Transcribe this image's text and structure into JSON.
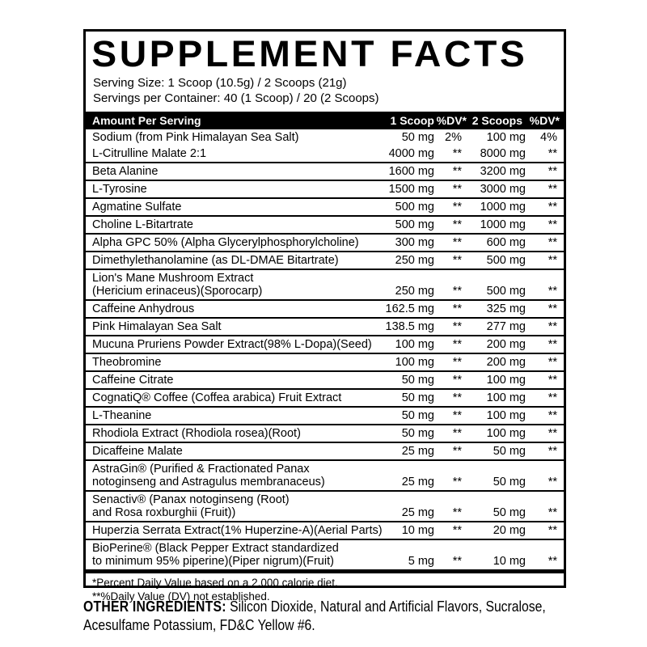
{
  "title": "SUPPLEMENT FACTS",
  "serving": {
    "size": "Serving Size: 1 Scoop (10.5g) / 2 Scoops (21g)",
    "per_container": "Servings per Container: 40 (1 Scoop) / 20 (2 Scoops)"
  },
  "columns": {
    "amount_header": "Amount Per Serving",
    "scoop1": "1 Scoop",
    "dv1": "%DV*",
    "scoop2": "2 Scoops",
    "dv2": "%DV*"
  },
  "sodium_row": {
    "name": "Sodium (from Pink Himalayan Sea Salt)",
    "scoop1": "50 mg",
    "dv1": "2%",
    "scoop2": "100 mg",
    "dv2": "4%"
  },
  "ingredients": [
    {
      "name": "L-Citrulline Malate 2:1",
      "scoop1": "4000 mg",
      "dv1": "**",
      "scoop2": "8000 mg",
      "dv2": "**"
    },
    {
      "name": "Beta Alanine",
      "scoop1": "1600 mg",
      "dv1": "**",
      "scoop2": "3200 mg",
      "dv2": "**"
    },
    {
      "name": "L-Tyrosine",
      "scoop1": "1500 mg",
      "dv1": "**",
      "scoop2": "3000 mg",
      "dv2": "**"
    },
    {
      "name": "Agmatine Sulfate",
      "scoop1": "500 mg",
      "dv1": "**",
      "scoop2": "1000 mg",
      "dv2": "**"
    },
    {
      "name": "Choline L-Bitartrate",
      "scoop1": "500 mg",
      "dv1": "**",
      "scoop2": "1000 mg",
      "dv2": "**"
    },
    {
      "name": "Alpha GPC 50% (Alpha Glycerylphosphorylcholine)",
      "scoop1": "300 mg",
      "dv1": "**",
      "scoop2": "600 mg",
      "dv2": "**"
    },
    {
      "name": "Dimethylethanolamine (as DL-DMAE Bitartrate)",
      "scoop1": "250 mg",
      "dv1": "**",
      "scoop2": "500 mg",
      "dv2": "**"
    },
    {
      "name": "Lion's Mane Mushroom Extract\n(Hericium erinaceus)(Sporocarp)",
      "scoop1": "250 mg",
      "dv1": "**",
      "scoop2": "500 mg",
      "dv2": "**"
    },
    {
      "name": "Caffeine Anhydrous",
      "scoop1": "162.5 mg",
      "dv1": "**",
      "scoop2": "325 mg",
      "dv2": "**"
    },
    {
      "name": "Pink Himalayan Sea Salt",
      "scoop1": "138.5 mg",
      "dv1": "**",
      "scoop2": "277 mg",
      "dv2": "**"
    },
    {
      "name": "Mucuna Pruriens Powder Extract(98% L-Dopa)(Seed)",
      "scoop1": "100 mg",
      "dv1": "**",
      "scoop2": "200 mg",
      "dv2": "**"
    },
    {
      "name": "Theobromine",
      "scoop1": "100 mg",
      "dv1": "**",
      "scoop2": "200 mg",
      "dv2": "**"
    },
    {
      "name": "Caffeine Citrate",
      "scoop1": "50 mg",
      "dv1": "**",
      "scoop2": "100 mg",
      "dv2": "**"
    },
    {
      "name": "CognatiQ® Coffee (Coffea arabica) Fruit Extract",
      "scoop1": "50 mg",
      "dv1": "**",
      "scoop2": "100 mg",
      "dv2": "**"
    },
    {
      "name": "L-Theanine",
      "scoop1": "50 mg",
      "dv1": "**",
      "scoop2": "100 mg",
      "dv2": "**"
    },
    {
      "name": "Rhodiola Extract (Rhodiola rosea)(Root)",
      "scoop1": "50 mg",
      "dv1": "**",
      "scoop2": "100 mg",
      "dv2": "**"
    },
    {
      "name": "Dicaffeine Malate",
      "scoop1": "25 mg",
      "dv1": "**",
      "scoop2": "50 mg",
      "dv2": "**"
    },
    {
      "name": "AstraGin® (Purified & Fractionated Panax\nnotoginseng and Astragulus membranaceus)",
      "scoop1": "25 mg",
      "dv1": "**",
      "scoop2": "50 mg",
      "dv2": "**"
    },
    {
      "name": "Senactiv® (Panax notoginseng (Root)\nand Rosa roxburghii (Fruit))",
      "scoop1": "25 mg",
      "dv1": "**",
      "scoop2": "50 mg",
      "dv2": "**"
    },
    {
      "name": "Huperzia Serrata Extract(1% Huperzine-A)(Aerial Parts)",
      "scoop1": "10 mg",
      "dv1": "**",
      "scoop2": "20 mg",
      "dv2": "**"
    },
    {
      "name": "BioPerine® (Black Pepper Extract standardized\nto minimum 95% piperine)(Piper nigrum)(Fruit)",
      "scoop1": "5 mg",
      "dv1": "**",
      "scoop2": "10 mg",
      "dv2": "**"
    }
  ],
  "footnotes": [
    "*Percent Daily Value based on a 2,000 calorie diet.",
    "**%Daily Value (DV) not established."
  ],
  "other_ingredients": {
    "label": "OTHER INGREDIENTS:",
    "text": " Silicon Dioxide, Natural and Artificial Flavors, Sucralose, Acesulfame Potassium, FD&C Yellow #6."
  }
}
